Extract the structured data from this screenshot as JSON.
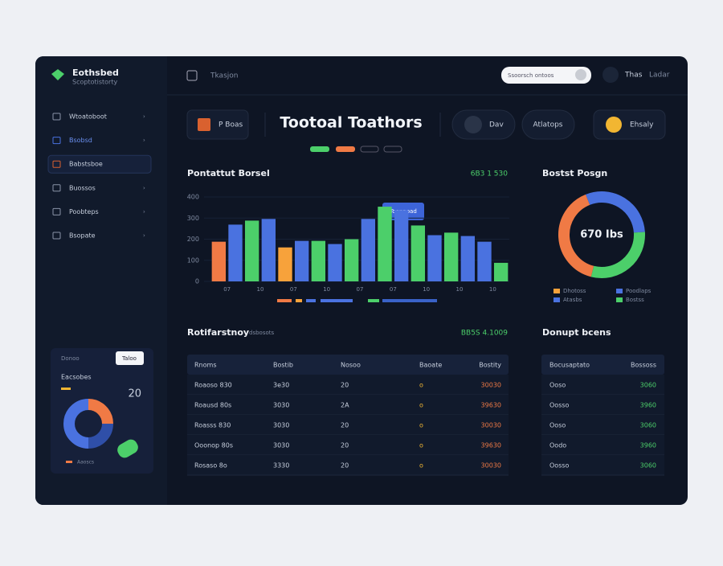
{
  "brand": {
    "name": "Eothsbed",
    "tagline": "Scoptotistorty"
  },
  "header": {
    "title": "Tkasjon",
    "search": "Ssoorsch ontoos",
    "user": "Thas",
    "user_sub": "Ladar"
  },
  "nav": [
    {
      "label": "Wtoatoboot"
    },
    {
      "label": "Bsobsd"
    },
    {
      "label": "Babstsboe"
    },
    {
      "label": "Buossos"
    },
    {
      "label": "Poobteps"
    },
    {
      "label": "Bsopate"
    }
  ],
  "toolbar": {
    "left": "P Boas",
    "title": "Tootoal Toathors",
    "btn1": "Dav",
    "btn2": "Atlatops",
    "btn3": "Ehsaly"
  },
  "sidebar_card": {
    "tab1": "Donoo",
    "tab2": "Taloo",
    "title": "Eacsobes",
    "value": "20",
    "legend": "Aaoscs",
    "donut": {
      "type": "pie",
      "values": [
        25,
        25,
        50
      ],
      "colors": [
        "#f07a45",
        "#2f4fa8",
        "#4a72e0"
      ]
    }
  },
  "bar_chart": {
    "type": "bar",
    "title": "Pontattut Borsel",
    "summary": "6B3 1 530",
    "tooltip": "Toonpoad",
    "categories": [
      "07",
      null,
      "10",
      null,
      "07",
      null,
      "10",
      null,
      "07",
      null,
      "07",
      null,
      "10",
      null,
      "10",
      null,
      "10",
      null
    ],
    "values": [
      188,
      269,
      288,
      296,
      161,
      192,
      192,
      177,
      200,
      296,
      354,
      338,
      265,
      219,
      231,
      215,
      188,
      88
    ],
    "colors": [
      "#f07a45",
      "#4a72e0",
      "#4ccf6a",
      "#4a72e0",
      "#f7a23b",
      "#4a72e0",
      "#4ccf6a",
      "#4a72e0",
      "#4ccf6a",
      "#4a72e0",
      "#4ccf6a",
      "#4a72e0",
      "#4ccf6a",
      "#4a72e0",
      "#4ccf6a",
      "#4a72e0",
      "#4a72e0",
      "#4ccf6a"
    ],
    "ylim": [
      0,
      400
    ],
    "yticks": [
      0,
      100,
      200,
      300,
      400
    ]
  },
  "donut_chart": {
    "type": "pie",
    "title": "Bostst Posgn",
    "center": "670 Ibs",
    "values": [
      30,
      30,
      40
    ],
    "colors": [
      "#4a72e0",
      "#4ccf6a",
      "#f07a45"
    ],
    "legend": [
      {
        "label": "Dhotoss",
        "color": "#f7a23b"
      },
      {
        "label": "Poodlaps",
        "color": "#4a72e0"
      },
      {
        "label": "Atasbs",
        "color": "#4a72e0"
      },
      {
        "label": "Bostss",
        "color": "#4ccf6a"
      }
    ]
  },
  "table": {
    "title": "Rotifarstnoy",
    "subtitle": "dsbosots",
    "summary": "BB5S 4.1009",
    "columns": [
      "Rnoms",
      "Bostib",
      "Nosoo",
      "Baoate",
      "Bostity"
    ],
    "rows": [
      [
        "Roaoso 830",
        "3e30",
        "20",
        "o",
        "30030"
      ],
      [
        "Roausd 80s",
        "3030",
        "2A",
        "o",
        "39630"
      ],
      [
        "Roasss 830",
        "3030",
        "20",
        "o",
        "30030"
      ],
      [
        "Ooonop 80s",
        "3030",
        "20",
        "o",
        "39630"
      ],
      [
        "Rosaso 8o",
        "3330",
        "20",
        "o",
        "30030"
      ]
    ]
  },
  "side_table": {
    "title": "Donupt bcens",
    "columns": [
      "Bocusaptato",
      "Bossoss"
    ],
    "rows": [
      [
        "Ooso",
        "3060"
      ],
      [
        "Oosso",
        "3960"
      ],
      [
        "Ooso",
        "3060"
      ],
      [
        "Oodo",
        "3960"
      ],
      [
        "Oosso",
        "3060"
      ]
    ]
  }
}
